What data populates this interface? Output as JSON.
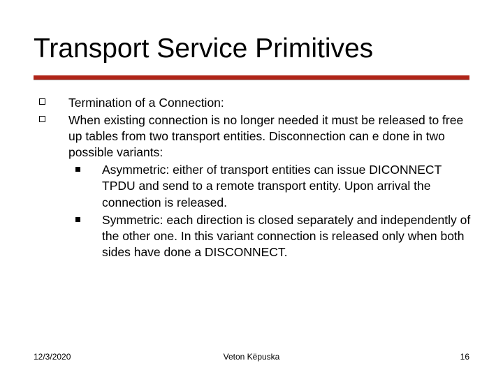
{
  "title": "Transport Service Primitives",
  "accent_color": "#b02418",
  "body": {
    "items": [
      {
        "text": "Termination of a Connection:"
      },
      {
        "text": "When existing connection is no longer needed it must be released to free up tables from two transport entities. Disconnection can e done in two possible variants:",
        "sub": [
          {
            "text": "Asymmetric: either of transport entities can issue DICONNECT TPDU and send to a remote transport entity. Upon arrival the connection is released."
          },
          {
            "text": "Symmetric: each direction is closed separately and independently of the other one. In this variant connection is released only when both sides have done a DISCONNECT."
          }
        ]
      }
    ]
  },
  "footer": {
    "date": "12/3/2020",
    "author": "Veton Këpuska",
    "page": "16"
  }
}
